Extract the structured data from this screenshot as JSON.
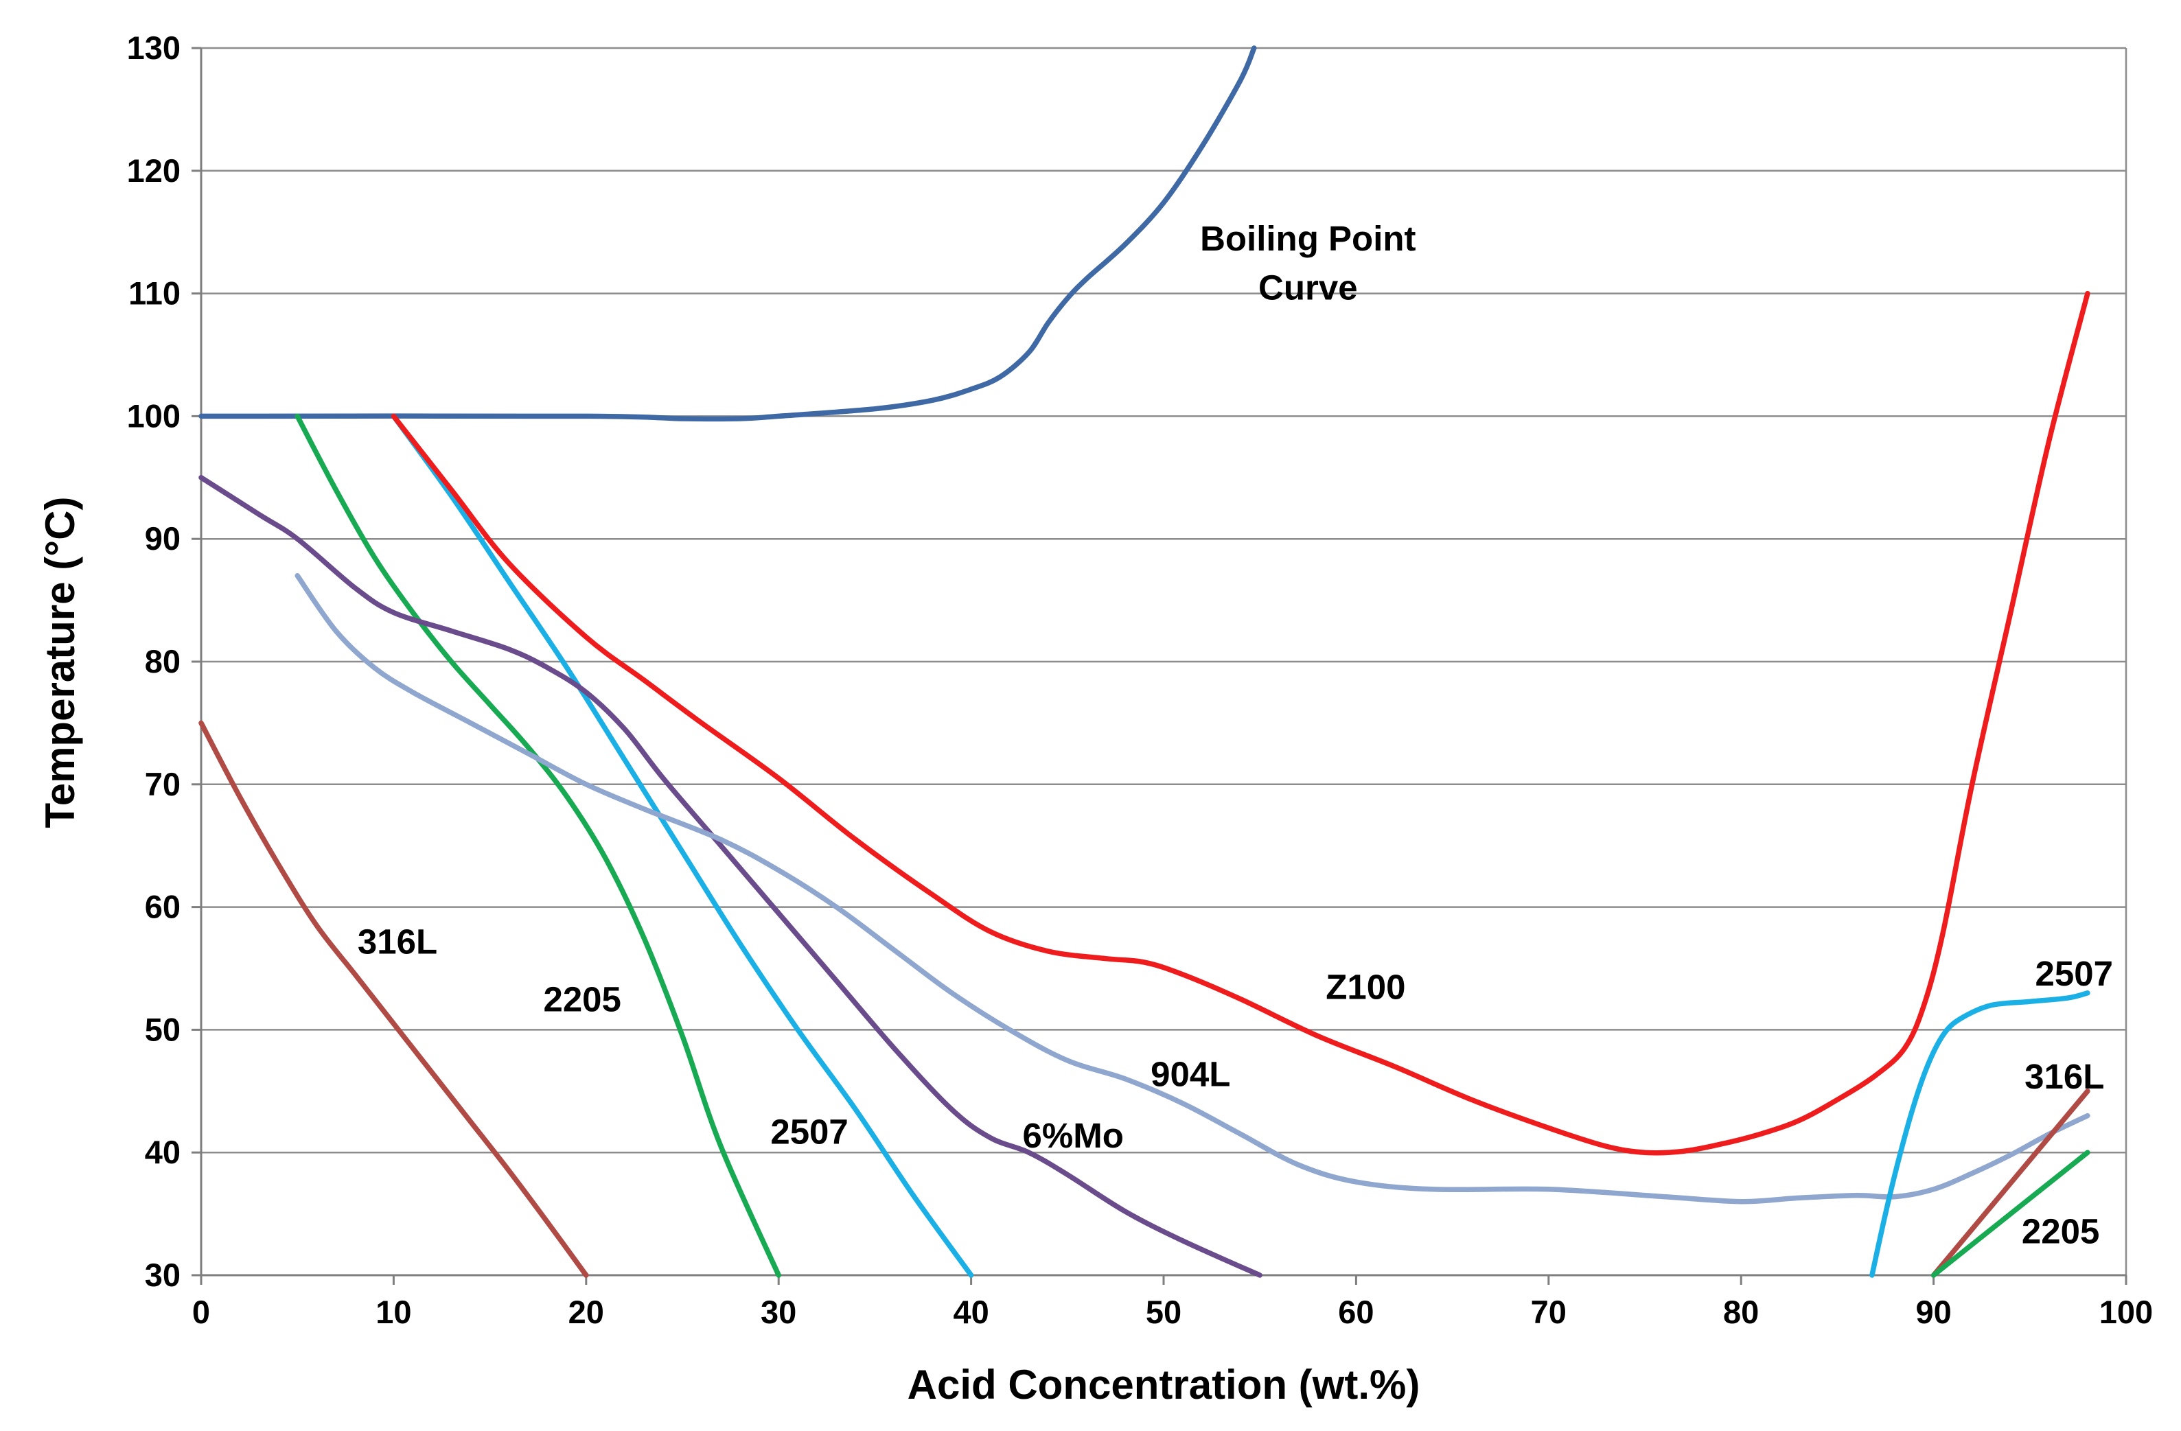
{
  "chart_data": {
    "type": "line",
    "title": "",
    "xlabel": "Acid Concentration (wt.%)",
    "ylabel": "Temperature (°C)",
    "xlim": [
      0,
      100
    ],
    "ylim": [
      30,
      130
    ],
    "xticks": [
      0,
      10,
      20,
      30,
      40,
      50,
      60,
      70,
      80,
      90,
      100
    ],
    "yticks": [
      30,
      40,
      50,
      60,
      70,
      80,
      90,
      100,
      110,
      120,
      130
    ],
    "grid": "horizontal",
    "series": [
      {
        "name": "Boiling Point Curve",
        "color": "#3f69a5",
        "x": [
          0,
          20,
          25,
          28,
          30,
          35,
          38,
          40,
          41.5,
          43,
          44,
          45,
          46,
          48,
          50,
          52,
          54,
          54.7
        ],
        "y": [
          100,
          100,
          99.8,
          99.8,
          100,
          100.6,
          101.3,
          102.2,
          103.2,
          105.2,
          107.6,
          109.6,
          111.2,
          114,
          117.4,
          122,
          127.4,
          130
        ]
      },
      {
        "name": "316L",
        "color": "#b04a45",
        "x": [
          0,
          2,
          4,
          6,
          8,
          10,
          12,
          14,
          16,
          18,
          20
        ],
        "y": [
          75,
          69,
          63.5,
          58.5,
          54.5,
          50.5,
          46.5,
          42.5,
          38.5,
          34.3,
          30
        ]
      },
      {
        "name": "2205",
        "color": "#17aa52",
        "x": [
          5,
          7,
          9,
          11,
          13,
          15,
          17,
          19,
          21,
          23,
          25,
          27,
          30
        ],
        "y": [
          100,
          94,
          88.5,
          84,
          80,
          76.5,
          73,
          69,
          64,
          57.5,
          49.5,
          40.5,
          30
        ]
      },
      {
        "name": "2507",
        "color": "#1ab0e6",
        "x": [
          10,
          13,
          16,
          19,
          22,
          25,
          28,
          31,
          34,
          37,
          40
        ],
        "y": [
          100,
          93.5,
          86.5,
          79.5,
          72,
          64.5,
          57,
          50,
          43.5,
          36.5,
          30
        ]
      },
      {
        "name": "6%Mo",
        "color": "#6a4c8c",
        "x": [
          0,
          3,
          5,
          8,
          10,
          13,
          16,
          18,
          20,
          22,
          24,
          27,
          30,
          33,
          36,
          39,
          41,
          43,
          45,
          48,
          51,
          55
        ],
        "y": [
          95,
          92,
          90,
          86,
          84,
          82.5,
          81,
          79.5,
          77.5,
          74.5,
          70.5,
          65,
          59.5,
          54,
          48.5,
          43.5,
          41.2,
          40,
          38.2,
          35.2,
          32.8,
          30
        ]
      },
      {
        "name": "904L",
        "color": "#8fa6cf",
        "x": [
          5,
          7,
          9,
          11,
          14,
          17,
          20,
          23,
          27,
          30,
          33,
          36,
          39,
          42,
          45,
          48,
          51,
          54,
          57,
          60,
          64,
          70,
          76,
          80,
          83,
          86,
          88,
          90,
          92,
          94,
          96,
          98
        ],
        "y": [
          87,
          82.5,
          79.5,
          77.5,
          75,
          72.5,
          70,
          68,
          65.5,
          63,
          60,
          56.5,
          53,
          50,
          47.5,
          46,
          44,
          41.5,
          39,
          37.6,
          37,
          37,
          36.4,
          36,
          36.3,
          36.5,
          36.4,
          37,
          38.3,
          39.8,
          41.5,
          43
        ]
      },
      {
        "name": "Z100",
        "color": "#ee1c1c",
        "x": [
          10,
          13,
          16,
          20,
          23,
          26,
          30,
          34,
          38,
          41,
          44,
          47,
          49,
          51,
          54,
          58,
          62,
          66,
          70,
          73,
          75,
          77,
          79,
          81,
          83,
          85,
          87,
          88.5,
          89.5,
          90.5,
          92,
          94,
          96,
          98
        ],
        "y": [
          100,
          94,
          88,
          82,
          78.5,
          75,
          70.5,
          65.5,
          61,
          58,
          56.4,
          55.8,
          55.5,
          54.5,
          52.5,
          49.5,
          47,
          44.3,
          42,
          40.5,
          40,
          40.1,
          40.7,
          41.5,
          42.6,
          44.3,
          46.3,
          48.5,
          52,
          58,
          70,
          84,
          98,
          110
        ]
      },
      {
        "name": "2507",
        "color": "#1ab0e6",
        "x": [
          86.8,
          87.5,
          88.2,
          89,
          89.8,
          90.6,
          91.5,
          93,
          95,
          97,
          98
        ],
        "y": [
          30,
          35,
          39.5,
          44,
          47.5,
          49.8,
          51,
          52,
          52.3,
          52.6,
          53
        ]
      },
      {
        "name": "316L",
        "color": "#b04a45",
        "x": [
          90,
          98
        ],
        "y": [
          30,
          45
        ]
      },
      {
        "name": "2205",
        "color": "#17aa52",
        "x": [
          90,
          98
        ],
        "y": [
          30,
          40
        ]
      }
    ],
    "annotations": [
      {
        "text": "Boiling Point",
        "x": 57.5,
        "y": 113.5
      },
      {
        "text": "Curve",
        "x": 57.5,
        "y": 109.5
      },
      {
        "text": "316L",
        "x": 10.2,
        "y": 56.2
      },
      {
        "text": "2205",
        "x": 19.8,
        "y": 51.5
      },
      {
        "text": "2507",
        "x": 31.6,
        "y": 40.7
      },
      {
        "text": "6%Mo",
        "x": 45.3,
        "y": 40.4
      },
      {
        "text": "904L",
        "x": 51.4,
        "y": 45.4
      },
      {
        "text": "Z100",
        "x": 60.5,
        "y": 52.5
      },
      {
        "text": "2507",
        "x": 97.3,
        "y": 53.6
      },
      {
        "text": "316L",
        "x": 96.8,
        "y": 45.2
      },
      {
        "text": "2205",
        "x": 96.6,
        "y": 32.6
      }
    ]
  }
}
